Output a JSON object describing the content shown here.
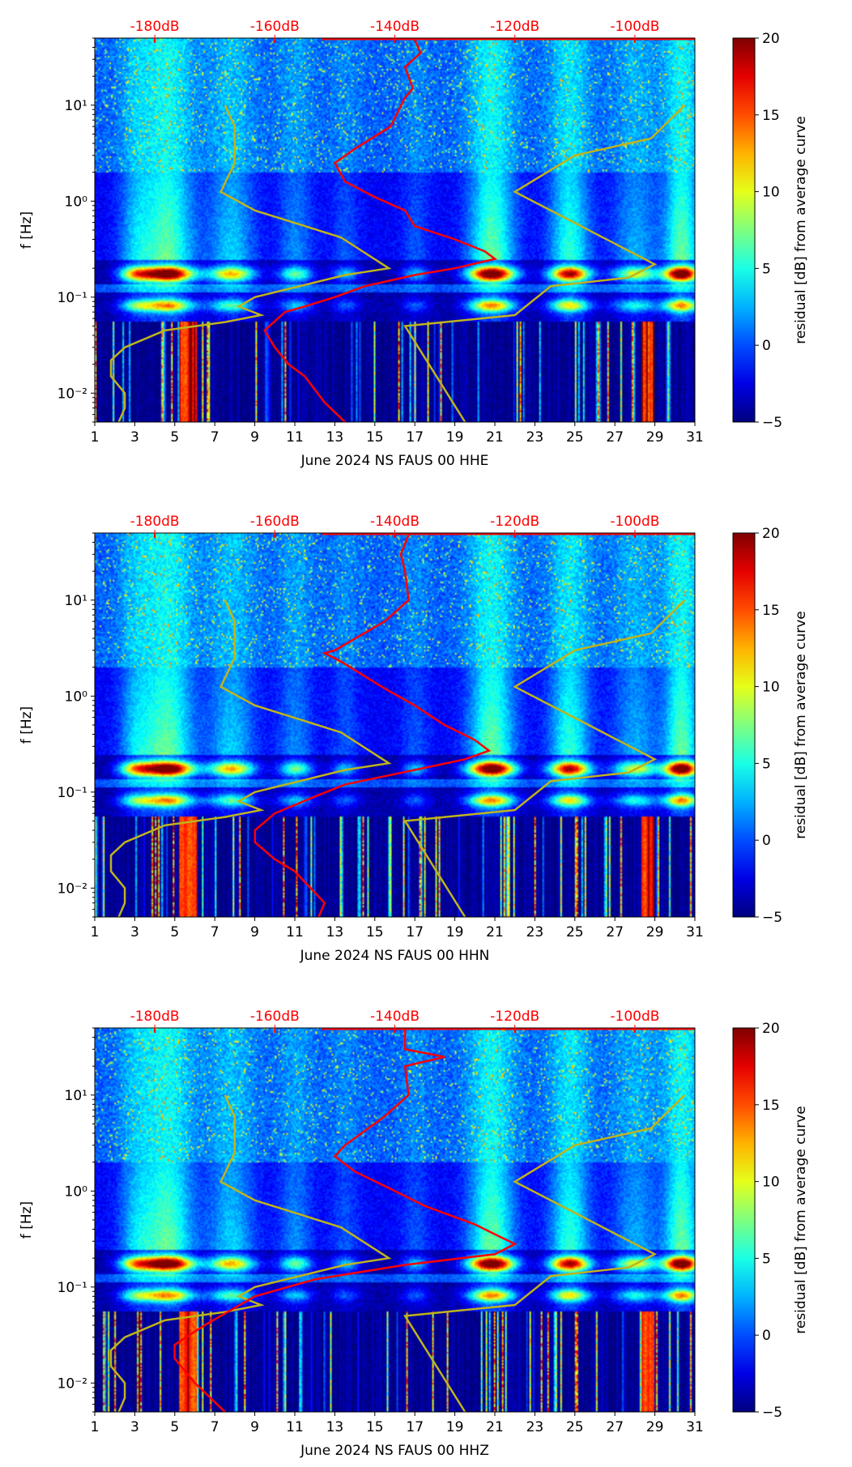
{
  "common": {
    "ylabel": "f [Hz]",
    "colorbar_label": "residual [dB] from average curve",
    "colorbar_ticks": [
      -5,
      0,
      5,
      10,
      15,
      20
    ],
    "colorbar_range": [
      -5,
      20
    ],
    "x_ticks": [
      1,
      3,
      5,
      7,
      9,
      11,
      13,
      15,
      17,
      19,
      21,
      23,
      25,
      27,
      29,
      31
    ],
    "xlim": [
      1,
      31
    ],
    "ylim_hz": [
      0.005,
      50
    ],
    "y_ticks": [
      {
        "v": 0.01,
        "label": "10⁻²"
      },
      {
        "v": 0.1,
        "label": "10⁻¹"
      },
      {
        "v": 1,
        "label": "10⁰"
      },
      {
        "v": 10,
        "label": "10¹"
      }
    ],
    "top_axis": {
      "ticks": [
        -180,
        -160,
        -140,
        -120,
        -100
      ],
      "labels": [
        "-180dB",
        "-160dB",
        "-140dB",
        "-120dB",
        "-100dB"
      ],
      "range_db": [
        -190,
        -90
      ],
      "color": "#ff0000"
    },
    "noise_model_color": "#bfb41c",
    "psd_color": "#ff0000",
    "nlnm": [
      [
        -168.3,
        10
      ],
      [
        -166.7,
        6
      ],
      [
        -166.7,
        2.5
      ],
      [
        -169,
        1.25
      ],
      [
        -163.3,
        0.8
      ],
      [
        -149,
        0.42
      ],
      [
        -141,
        0.2
      ],
      [
        -148.3,
        0.17
      ],
      [
        -163.3,
        0.1
      ],
      [
        -166,
        0.08
      ],
      [
        -162.3,
        0.065
      ],
      [
        -168.3,
        0.055
      ],
      [
        -178.3,
        0.045
      ],
      [
        -185,
        0.03
      ],
      [
        -187.3,
        0.022
      ],
      [
        -187.3,
        0.015
      ],
      [
        -185,
        0.01
      ],
      [
        -185,
        0.007
      ],
      [
        -186,
        0.005
      ]
    ],
    "nhnm": [
      [
        -91.7,
        10
      ],
      [
        -97.3,
        4.5
      ],
      [
        -110,
        3
      ],
      [
        -120,
        1.25
      ],
      [
        -96.7,
        0.22
      ],
      [
        -101,
        0.16
      ],
      [
        -114,
        0.13
      ],
      [
        -120,
        0.065
      ],
      [
        -138.3,
        0.05
      ],
      [
        -128.3,
        0.005
      ]
    ]
  },
  "chart_data": [
    {
      "type": "heatmap",
      "xlabel": "June 2024 NS FAUS 00 HHE",
      "psd_db": [
        [
          -136.7,
          48
        ],
        [
          -135.7,
          35
        ],
        [
          -138.3,
          25
        ],
        [
          -137,
          15
        ],
        [
          -138.3,
          12
        ],
        [
          -140.7,
          6
        ],
        [
          -146.7,
          3.5
        ],
        [
          -150,
          2.5
        ],
        [
          -148.3,
          1.6
        ],
        [
          -143.3,
          1.1
        ],
        [
          -138.3,
          0.8
        ],
        [
          -136.7,
          0.55
        ],
        [
          -130,
          0.4
        ],
        [
          -125,
          0.3
        ],
        [
          -123.3,
          0.25
        ],
        [
          -130,
          0.2
        ],
        [
          -136.7,
          0.17
        ],
        [
          -145,
          0.13
        ],
        [
          -150,
          0.1
        ],
        [
          -155,
          0.08
        ],
        [
          -158.3,
          0.07
        ],
        [
          -161.7,
          0.045
        ],
        [
          -160,
          0.03
        ],
        [
          -157.7,
          0.02
        ],
        [
          -155,
          0.015
        ],
        [
          -151.7,
          0.008
        ],
        [
          -148.3,
          0.005
        ]
      ]
    },
    {
      "type": "heatmap",
      "xlabel": "June 2024 NS FAUS 00 HHN",
      "psd_db": [
        [
          -137.7,
          48
        ],
        [
          -139,
          30
        ],
        [
          -138.3,
          20
        ],
        [
          -137.7,
          10
        ],
        [
          -141.7,
          6
        ],
        [
          -150,
          3
        ],
        [
          -151.7,
          2.8
        ],
        [
          -149,
          2.3
        ],
        [
          -141.7,
          1.2
        ],
        [
          -136.7,
          0.8
        ],
        [
          -131.7,
          0.5
        ],
        [
          -126.7,
          0.35
        ],
        [
          -124.3,
          0.27
        ],
        [
          -128.3,
          0.22
        ],
        [
          -136.7,
          0.17
        ],
        [
          -148.3,
          0.12
        ],
        [
          -153.3,
          0.09
        ],
        [
          -160,
          0.06
        ],
        [
          -163.3,
          0.04
        ],
        [
          -163.3,
          0.03
        ],
        [
          -160,
          0.02
        ],
        [
          -156.7,
          0.015
        ],
        [
          -151.7,
          0.007
        ],
        [
          -152.7,
          0.005
        ]
      ]
    },
    {
      "type": "heatmap",
      "xlabel": "June 2024 NS FAUS 00 HHZ",
      "psd_db": [
        [
          -138.3,
          48
        ],
        [
          -138.3,
          30
        ],
        [
          -131.7,
          25
        ],
        [
          -138.3,
          20
        ],
        [
          -137.7,
          10
        ],
        [
          -141.7,
          6
        ],
        [
          -148.3,
          3
        ],
        [
          -150,
          2.3
        ],
        [
          -146.7,
          1.6
        ],
        [
          -140,
          1
        ],
        [
          -135,
          0.7
        ],
        [
          -126.7,
          0.45
        ],
        [
          -120,
          0.28
        ],
        [
          -123.3,
          0.22
        ],
        [
          -138.3,
          0.17
        ],
        [
          -153.3,
          0.12
        ],
        [
          -163.3,
          0.08
        ],
        [
          -171.7,
          0.04
        ],
        [
          -176.7,
          0.025
        ],
        [
          -176.7,
          0.018
        ],
        [
          -173.3,
          0.01
        ],
        [
          -168.3,
          0.005
        ]
      ]
    }
  ]
}
